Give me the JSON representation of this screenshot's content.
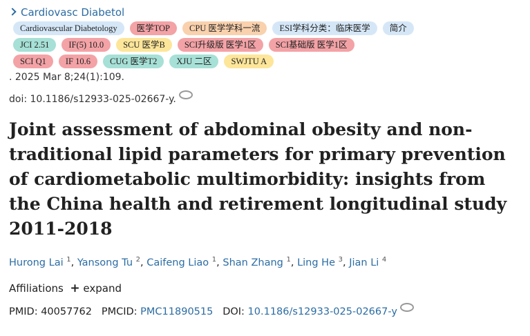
{
  "journal": "Cardiovasc Diabetol",
  "tags": [
    [
      {
        "text": "Cardiovascular Diabetology",
        "color": "#d5e7f7"
      },
      {
        "text": "医学TOP",
        "color": "#f3a2a6"
      },
      {
        "text": "CPU 医学学科一流",
        "color": "#f9d1ad"
      },
      {
        "text": "ESI学科分类：临床医学",
        "color": "#d5e7f7"
      },
      {
        "text": "简介",
        "color": "#d5e7f7"
      }
    ],
    [
      {
        "text": "JCI 2.51",
        "color": "#a6e0d6"
      },
      {
        "text": "IF(5) 10.0",
        "color": "#f3a2a6"
      },
      {
        "text": "SCU 医学B",
        "color": "#fde69a"
      },
      {
        "text": "SCI升级版 医学1区",
        "color": "#f3a2a6"
      },
      {
        "text": "SCI基础版 医学1区",
        "color": "#f3a2a6"
      }
    ],
    [
      {
        "text": "SCI Q1",
        "color": "#f3a2a6"
      },
      {
        "text": "IF 10.6",
        "color": "#f3a2a6"
      },
      {
        "text": "CUG 医学T2",
        "color": "#a6e0d6"
      },
      {
        "text": "XJU 二区",
        "color": "#a6e0d6"
      },
      {
        "text": "SWJTU A",
        "color": "#fde69a"
      }
    ]
  ],
  "citation": ". 2025 Mar 8;24(1):109.",
  "doi_line": "doi: 10.1186/s12933-025-02667-y.",
  "title": "Joint assessment of abdominal obesity and non-traditional lipid parameters for primary prevention of cardiometabolic multimorbidity: insights from the China health and retirement longitudinal study 2011-2018",
  "authors": [
    {
      "name": "Hurong Lai",
      "aff": "1"
    },
    {
      "name": "Yansong Tu",
      "aff": "2"
    },
    {
      "name": "Caifeng Liao",
      "aff": "1"
    },
    {
      "name": "Shan Zhang",
      "aff": "1"
    },
    {
      "name": "Ling He",
      "aff": "3"
    },
    {
      "name": "Jian Li",
      "aff": "4"
    }
  ],
  "author_separator": ",",
  "affiliations": "Affiliations",
  "expand": "expand",
  "ids": {
    "pmid_label": "PMID:",
    "pmid": "40057762",
    "pmcid_label": "PMCID:",
    "pmcid": "PMC11890515",
    "doi_label": "DOI:",
    "doi": "10.1186/s12933-025-02667-y"
  }
}
